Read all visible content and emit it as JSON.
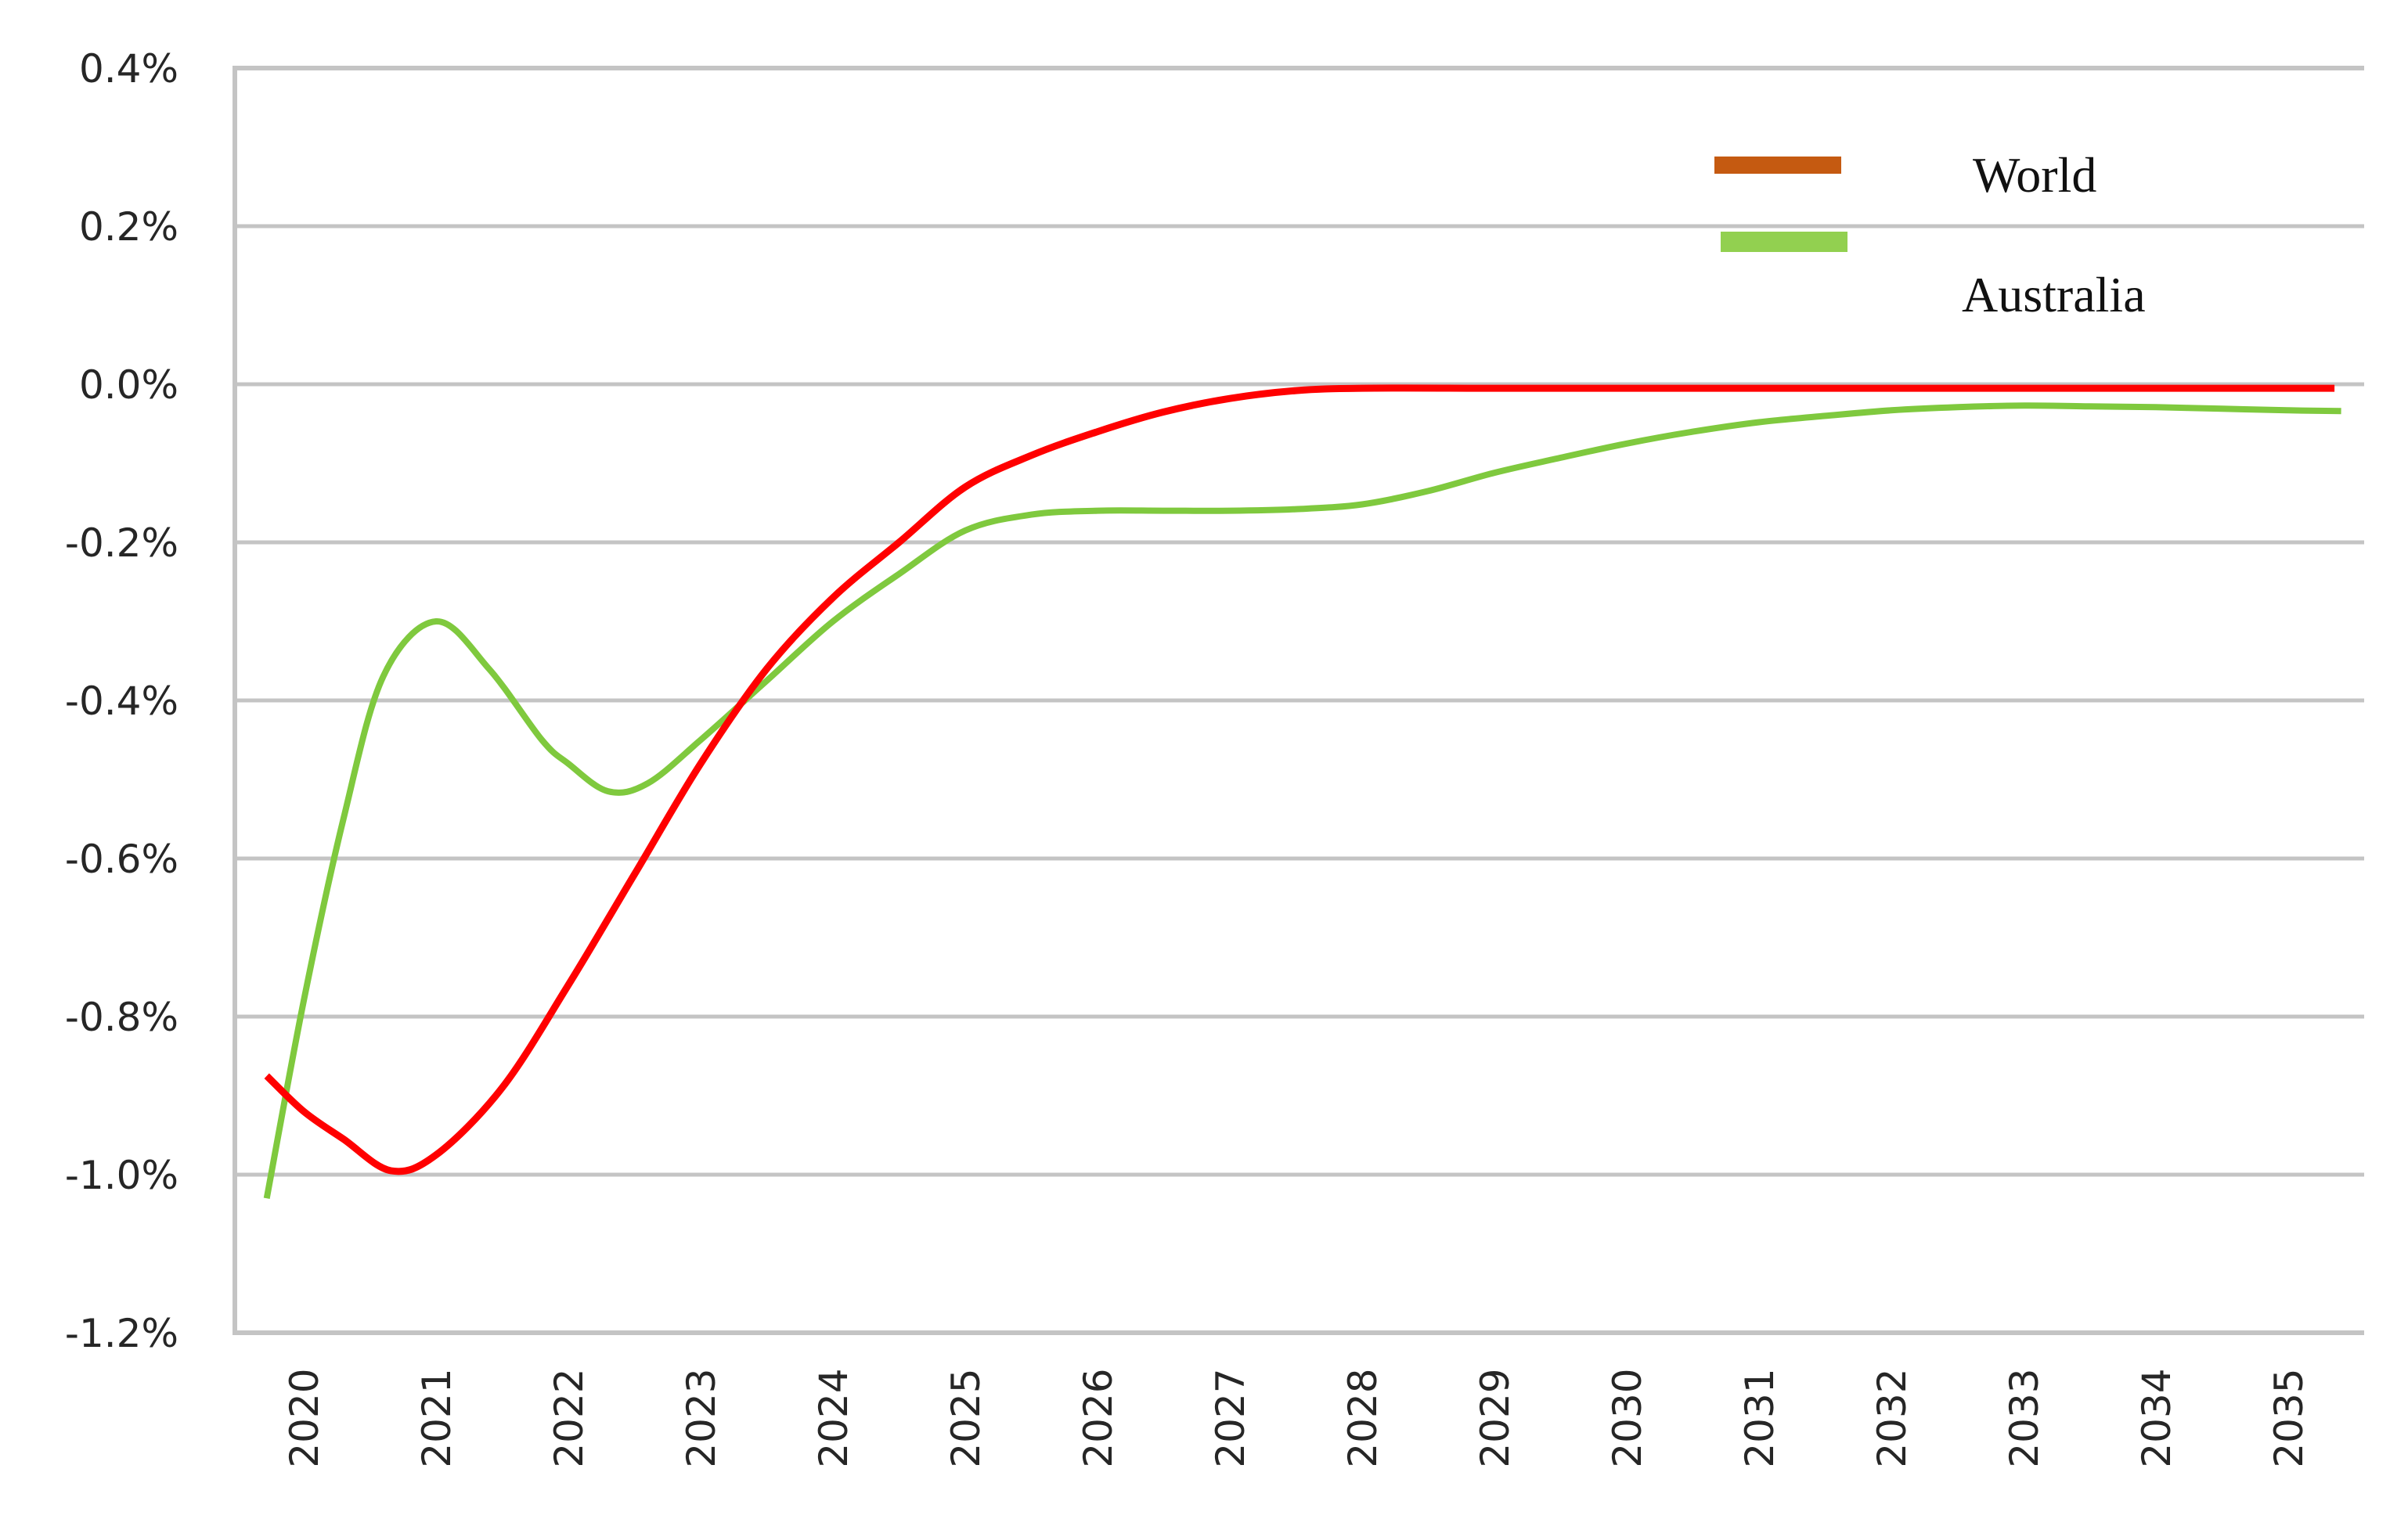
{
  "chart_data": {
    "type": "line",
    "title": "",
    "xlabel": "",
    "ylabel": "",
    "ylim": [
      -1.2,
      0.4
    ],
    "xlim": [
      2019.7,
      2035.4
    ],
    "grid": true,
    "legend_position": "upper right",
    "y_ticks": [
      0.4,
      0.2,
      0.0,
      -0.2,
      -0.4,
      -0.6,
      -0.8,
      -1.0,
      -1.2
    ],
    "y_tick_labels": [
      "0.4%",
      "0.2%",
      "0.0%",
      "-0.2%",
      "-0.4%",
      "-0.6%",
      "-0.8%",
      "-1.0%",
      "-1.2%"
    ],
    "categories": [
      "2020",
      "2021",
      "2022",
      "2023",
      "2024",
      "2025",
      "2026",
      "2027",
      "2028",
      "2029",
      "2030",
      "2031",
      "2032",
      "2033",
      "2034",
      "2035"
    ],
    "series": [
      {
        "name": "World",
        "line_color": "#ff0000",
        "legend_color": "#c55a11",
        "x": [
          2019.72,
          2020.0,
          2020.3,
          2020.66,
          2021.0,
          2021.5,
          2022.0,
          2022.5,
          2023.0,
          2023.5,
          2024.0,
          2024.5,
          2025.0,
          2025.5,
          2026.0,
          2026.5,
          2027.0,
          2027.5,
          2028.0,
          2029.0,
          2030.0,
          2031.0,
          2032.0,
          2033.0,
          2034.0,
          2035.0,
          2035.35
        ],
        "values": [
          -0.875,
          -0.92,
          -0.955,
          -0.995,
          -0.975,
          -0.89,
          -0.76,
          -0.62,
          -0.48,
          -0.36,
          -0.27,
          -0.2,
          -0.13,
          -0.09,
          -0.06,
          -0.035,
          -0.018,
          -0.008,
          -0.005,
          -0.005,
          -0.005,
          -0.005,
          -0.005,
          -0.005,
          -0.005,
          -0.005,
          -0.005
        ]
      },
      {
        "name": "Australia",
        "line_color": "#7fc93e",
        "legend_color": "#92d050",
        "x": [
          2019.72,
          2020.0,
          2020.3,
          2020.6,
          2021.0,
          2021.4,
          2021.8,
          2022.0,
          2022.3,
          2022.6,
          2023.0,
          2023.5,
          2024.0,
          2024.5,
          2025.0,
          2025.5,
          2026.0,
          2026.5,
          2027.0,
          2027.5,
          2028.0,
          2028.5,
          2029.0,
          2029.5,
          2030.0,
          2030.5,
          2031.0,
          2031.5,
          2032.0,
          2032.5,
          2033.0,
          2033.5,
          2034.0,
          2034.5,
          2035.0,
          2035.4
        ],
        "values": [
          -1.03,
          -0.78,
          -0.55,
          -0.37,
          -0.3,
          -0.36,
          -0.45,
          -0.48,
          -0.515,
          -0.505,
          -0.45,
          -0.375,
          -0.3,
          -0.24,
          -0.185,
          -0.165,
          -0.16,
          -0.16,
          -0.16,
          -0.158,
          -0.152,
          -0.135,
          -0.112,
          -0.093,
          -0.075,
          -0.06,
          -0.048,
          -0.04,
          -0.033,
          -0.029,
          -0.027,
          -0.028,
          -0.029,
          -0.031,
          -0.033,
          -0.034
        ]
      }
    ]
  },
  "legend": {
    "items": [
      {
        "label": "World",
        "color": "#c55a11"
      },
      {
        "label": "Australia",
        "color": "#92d050"
      }
    ]
  }
}
